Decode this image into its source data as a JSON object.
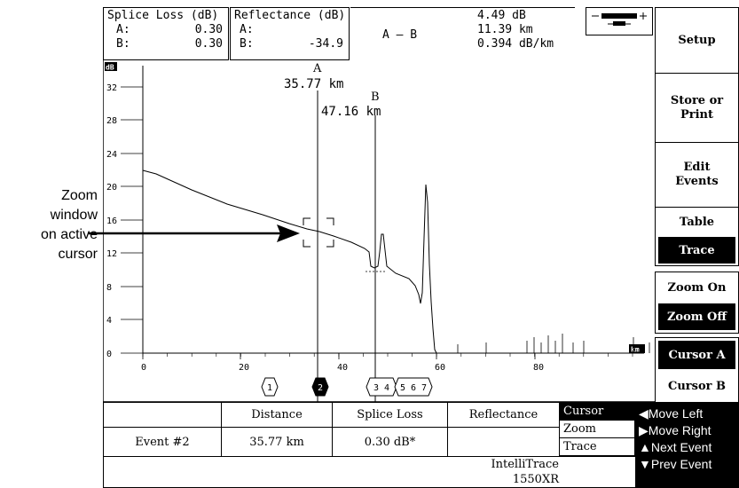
{
  "annotation": {
    "line1": "Zoom",
    "line2": "window",
    "line3": "on active",
    "line4": "cursor"
  },
  "readout": {
    "splice_title": "Splice Loss (dB)",
    "splice_a_label": "A:",
    "splice_a_value": "0.30",
    "splice_b_label": "B:",
    "splice_b_value": "0.30",
    "refl_title": "Reflectance (dB)",
    "refl_a_label": "A:",
    "refl_a_value": "",
    "refl_b_label": "B:",
    "refl_b_value": "-34.9",
    "ab_label": "A – B",
    "ab_loss": "4.49 dB",
    "ab_distance": "11.39 km",
    "ab_atten": "0.394 dB/km"
  },
  "softkeys": {
    "setup": "Setup",
    "store_line1": "Store or",
    "store_line2": "Print",
    "edit_line1": "Edit",
    "edit_line2": "Events",
    "table": "Table",
    "trace": "Trace",
    "zoom_on": "Zoom On",
    "zoom_off": "Zoom Off",
    "cursor_a": "Cursor A",
    "cursor_b": "Cursor B"
  },
  "plot": {
    "y_unit": "dB",
    "x_unit": "km",
    "y_ticks": [
      "32",
      "28",
      "24",
      "20",
      "16",
      "12",
      "8",
      "4",
      "0"
    ],
    "x_ticks": [
      "0",
      "20",
      "40",
      "60",
      "80"
    ],
    "cursor_a_name": "A",
    "cursor_a_dist": "35.77 km",
    "cursor_b_name": "B",
    "cursor_b_dist": "47.16 km",
    "event_markers": [
      "1",
      "2",
      "3 4",
      "5 6 7"
    ]
  },
  "table": {
    "headers": [
      "",
      "Distance",
      "Splice Loss",
      "Reflectance"
    ],
    "row": [
      "Event #2",
      "35.77 km",
      "0.30 dB*",
      ""
    ]
  },
  "menu": {
    "items": [
      "Cursor",
      "Zoom",
      "Trace"
    ]
  },
  "moves": {
    "left": "◀Move Left",
    "right": "▶Move Right",
    "next": "▲Next Event",
    "prev": "▼Prev Event"
  },
  "footer": {
    "line1": "IntelliTrace",
    "line2": "1550XR"
  },
  "colors": {
    "ink": "#000000",
    "paper": "#ffffff"
  }
}
